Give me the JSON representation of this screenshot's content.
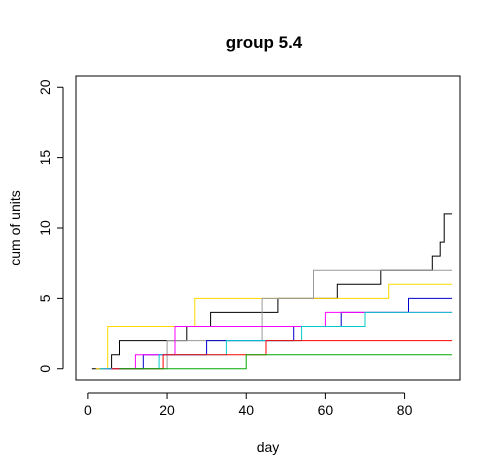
{
  "chart_data": {
    "type": "line",
    "title": "group 5.4",
    "xlabel": "day",
    "ylabel": "cum of units",
    "xlim": [
      -3,
      94
    ],
    "ylim": [
      -0.8,
      20.8
    ],
    "xticks": [
      0,
      20,
      40,
      60,
      80
    ],
    "yticks": [
      0,
      5,
      10,
      15,
      20
    ],
    "grid": false,
    "legend": "none",
    "series": [
      {
        "color": "#000000",
        "x": [
          1,
          6,
          8,
          25,
          31,
          48,
          63,
          74,
          80,
          87,
          89,
          90,
          92
        ],
        "y": [
          0,
          1,
          2,
          3,
          4,
          5,
          6,
          7,
          7,
          8,
          9,
          11,
          11
        ]
      },
      {
        "color": "#FFD700",
        "x": [
          2,
          5,
          27,
          55,
          76,
          92
        ],
        "y": [
          0,
          3,
          5,
          5,
          6,
          6
        ]
      },
      {
        "color": "#999999",
        "x": [
          3,
          20,
          44,
          57,
          92
        ],
        "y": [
          0,
          2,
          5,
          7,
          7
        ]
      },
      {
        "color": "#0000CC",
        "x": [
          5,
          14,
          30,
          52,
          64,
          81,
          92
        ],
        "y": [
          0,
          1,
          2,
          3,
          4,
          5,
          5
        ]
      },
      {
        "color": "#FF00FF",
        "x": [
          4,
          12,
          22,
          38,
          60,
          92
        ],
        "y": [
          0,
          1,
          3,
          3,
          4,
          4
        ]
      },
      {
        "color": "#00CCCC",
        "x": [
          3,
          18,
          35,
          54,
          70,
          92
        ],
        "y": [
          0,
          1,
          2,
          3,
          4,
          4
        ]
      },
      {
        "color": "#FF0000",
        "x": [
          6,
          19,
          33,
          45,
          58,
          75,
          92
        ],
        "y": [
          0,
          1,
          1,
          2,
          2,
          2,
          2
        ]
      },
      {
        "color": "#00AA00",
        "x": [
          8,
          25,
          40,
          62,
          78,
          88,
          92
        ],
        "y": [
          0,
          0,
          1,
          1,
          1,
          1,
          1
        ]
      }
    ]
  }
}
